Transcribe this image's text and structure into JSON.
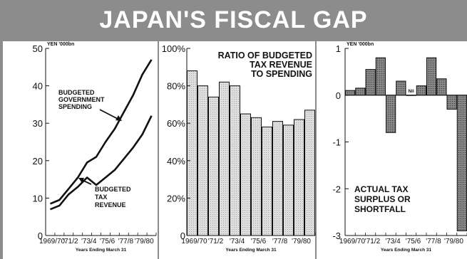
{
  "title": "JAPAN'S FISCAL GAP",
  "colors": {
    "background": "#8c8c8c",
    "panel": "#ffffff",
    "bar_fill": "#d8d8d8",
    "ink": "#111111"
  },
  "chart_data": [
    {
      "type": "line",
      "unit": "YEN '000bn",
      "ylim": [
        0,
        50
      ],
      "yticks": [
        "0",
        "10",
        "20",
        "30",
        "40",
        "50"
      ],
      "x": [
        "1969/70",
        "1970/1",
        "1971/2",
        "1972/3",
        "1973/4",
        "1974/5",
        "1975/6",
        "1976/7",
        "1977/8",
        "1978/9",
        "1979/80",
        "1980/1"
      ],
      "xtick_labels": [
        "1969/70",
        "'71/2",
        "'73/4",
        "'75/6",
        "'77/8",
        "'79/80"
      ],
      "xlabel": "Years Ending March 31",
      "series": [
        {
          "name": "BUDGETED GOVERNMENT SPENDING",
          "name_lines": [
            "BUDGETED",
            "GOVERNMENT",
            "SPENDING"
          ],
          "values": [
            8.5,
            9.5,
            12.5,
            15.5,
            19.5,
            21,
            25,
            28.5,
            33,
            37.5,
            43,
            47
          ]
        },
        {
          "name": "BUDGETED TAX REVENUE",
          "name_lines": [
            "BUDGETED",
            "TAX",
            "REVENUE"
          ],
          "values": [
            7,
            8,
            11,
            13,
            15.5,
            13.5,
            15.5,
            17.5,
            20.5,
            23.5,
            27,
            32
          ]
        }
      ]
    },
    {
      "type": "bar",
      "title": "RATIO OF BUDGETED TAX REVENUE TO SPENDING",
      "title_lines": [
        "RATIO OF BUDGETED",
        "TAX REVENUE",
        "TO SPENDING"
      ],
      "ylim": [
        0,
        100
      ],
      "yticks": [
        "0",
        "20%",
        "40%",
        "60%",
        "80%",
        "100%"
      ],
      "categories": [
        "1969/70",
        "1970/1",
        "1971/2",
        "1972/3",
        "1973/4",
        "1974/5",
        "1975/6",
        "1976/7",
        "1977/8",
        "1978/9",
        "1979/80",
        "1980/1"
      ],
      "xtick_labels": [
        "1969/70",
        "'71/2",
        "'73/4",
        "'75/6",
        "'77/8",
        "'79/80"
      ],
      "values": [
        88,
        80,
        74,
        82,
        80,
        65,
        63,
        58,
        61,
        59,
        62,
        67
      ],
      "xlabel": "Years Ending March 31"
    },
    {
      "type": "bar",
      "unit": "YEN '000bn",
      "title": "ACTUAL TAX SURPLUS OR SHORTFALL",
      "title_lines": [
        "ACTUAL TAX",
        "SURPLUS OR",
        "SHORTFALL"
      ],
      "ylim": [
        -3,
        1
      ],
      "yticks": [
        "1",
        "0",
        "-1",
        "-2",
        "-3"
      ],
      "categories": [
        "1969/70",
        "1970/1",
        "1971/2",
        "1972/3",
        "1973/4",
        "1974/5",
        "1975/6",
        "1976/7",
        "1977/8",
        "1978/9",
        "1979/80",
        "1980/1"
      ],
      "xtick_labels": [
        "1969/70",
        "'71/2",
        "'73/4",
        "'75/6",
        "'77/8",
        "'79/80"
      ],
      "values": [
        0.1,
        0.15,
        0.55,
        0.8,
        -0.8,
        0.3,
        0.0,
        0.2,
        0.8,
        0.35,
        -0.3,
        -2.9
      ],
      "nil_label": "Nil",
      "xlabel": "Years Ending March 31"
    }
  ]
}
